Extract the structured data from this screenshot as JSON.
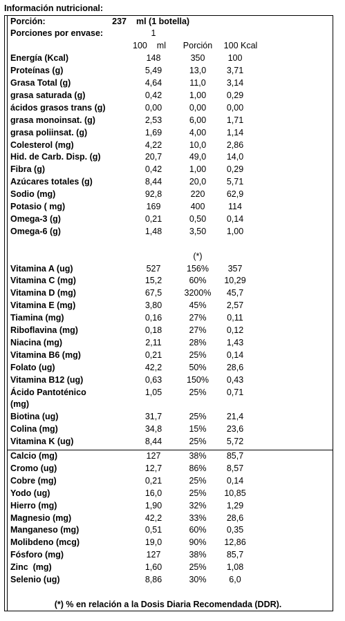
{
  "title": "Información nutricional:",
  "serving": {
    "label": "Porción:",
    "amount": "237",
    "unit": "ml (1 botella)"
  },
  "servings_per_container": {
    "label": "Porciones por envase:",
    "value": "1"
  },
  "columns": [
    "100    ml",
    "Porción",
    "100 Kcal"
  ],
  "sections": [
    {
      "rows": [
        [
          "Energía (Kcal)",
          "148",
          "350",
          "100"
        ],
        [
          "Proteínas (g)",
          "5,49",
          "13,0",
          "3,71"
        ],
        [
          "Grasa Total (g)",
          "4,64",
          "11,0",
          "3,14"
        ],
        [
          "grasa saturada (g)",
          "0,42",
          "1,00",
          "0,29"
        ],
        [
          "ácidos grasos trans (g)",
          "0,00",
          "0,00",
          "0,00"
        ],
        [
          "grasa monoinsat. (g)",
          "2,53",
          "6,00",
          "1,71"
        ],
        [
          "grasa poliinsat. (g)",
          "1,69",
          "4,00",
          "1,14"
        ],
        [
          "Colesterol (mg)",
          "4,22",
          "10,0",
          "2,86"
        ],
        [
          "Hid. de Carb. Disp. (g)",
          "20,7",
          "49,0",
          "14,0"
        ],
        [
          "Fibra (g)",
          "0,42",
          "1,00",
          "0,29"
        ],
        [
          "Azúcares totales (g)",
          "8,44",
          "20,0",
          "5,71"
        ],
        [
          "Sodio (mg)",
          "92,8",
          "220",
          "62,9"
        ],
        [
          "Potasio ( mg)",
          "169",
          "400",
          "114"
        ],
        [
          "Omega-3 (g)",
          "0,21",
          "0,50",
          "0,14"
        ],
        [
          "Omega-6 (g)",
          "1,48",
          "3,50",
          "1,00"
        ]
      ]
    },
    {
      "note": "(*)",
      "rows": [
        [
          "Vitamina A (ug)",
          "527",
          "156%",
          "357"
        ],
        [
          "Vitamina C (mg)",
          "15,2",
          "60%",
          "10,29"
        ],
        [
          "Vitamina D (mg)",
          "67,5",
          "3200%",
          "45,7"
        ],
        [
          "Vitamina E (mg)",
          "3,80",
          "45%",
          "2,57"
        ],
        [
          "Tiamina (mg)",
          "0,16",
          "27%",
          "0,11"
        ],
        [
          "Riboflavina (mg)",
          "0,18",
          "27%",
          "0,12"
        ],
        [
          "Niacina (mg)",
          "2,11",
          "28%",
          "1,43"
        ],
        [
          "Vitamina B6 (mg)",
          "0,21",
          "25%",
          "0,14"
        ],
        [
          "Folato (ug)",
          "42,2",
          "50%",
          "28,6"
        ],
        [
          "Vitamina B12 (ug)",
          "0,63",
          "150%",
          "0,43"
        ],
        [
          "Ácido Pantoténico\n(mg)",
          "1,05",
          "25%",
          "0,71"
        ],
        [
          "Biotina (ug)",
          "31,7",
          "25%",
          "21,4"
        ],
        [
          "Colina (mg)",
          "34,8",
          "15%",
          "23,6"
        ],
        [
          "Vitamina K (ug)",
          "8,44",
          "25%",
          "5,72"
        ]
      ]
    },
    {
      "rows": [
        [
          "Calcio (mg)",
          "127",
          "38%",
          "85,7"
        ],
        [
          "Cromo (ug)",
          "12,7",
          "86%",
          "8,57"
        ],
        [
          "Cobre (mg)",
          "0,21",
          "25%",
          "0,14"
        ],
        [
          "Yodo (ug)",
          "16,0",
          "25%",
          "10,85"
        ],
        [
          "Hierro (mg)",
          "1,90",
          "32%",
          "1,29"
        ],
        [
          "Magnesio (mg)",
          "42,2",
          "33%",
          "28,6"
        ],
        [
          "Manganeso (mg)",
          "0,51",
          "60%",
          "0,35"
        ],
        [
          "Molibdeno (mcg)",
          "19,0",
          "90%",
          "12,86"
        ],
        [
          "Fósforo (mg)",
          "127",
          "38%",
          "85,7"
        ],
        [
          "Zinc  (mg)",
          "1,60",
          "25%",
          "1,08"
        ],
        [
          "Selenio (ug)",
          "8,86",
          "30%",
          "6,0"
        ]
      ]
    }
  ],
  "footnote": "(*) % en relación a la Dosis Diaria Recomendada (DDR)."
}
